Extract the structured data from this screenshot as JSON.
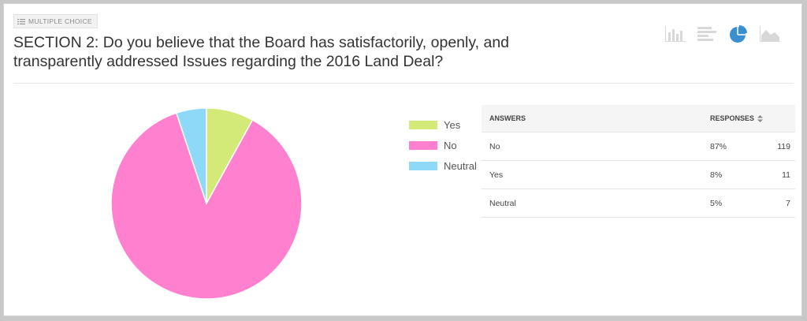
{
  "question": {
    "type_label": "MULTIPLE CHOICE",
    "title": "SECTION 2: Do you believe that the Board has satisfactorily, openly, and transparently addressed Issues regarding the 2016 Land Deal?"
  },
  "view_options": [
    {
      "icon": "vertical-bar-chart-icon",
      "active": false
    },
    {
      "icon": "horizontal-bar-chart-icon",
      "active": false
    },
    {
      "icon": "pie-chart-icon",
      "active": true
    },
    {
      "icon": "area-chart-icon",
      "active": false
    }
  ],
  "colors": {
    "yes": "#d4ea78",
    "no": "#ff80cf",
    "neutral": "#8ed8f8",
    "active_view": "#3a8fd0",
    "inactive_view": "#d8d8d8"
  },
  "legend": [
    {
      "label": "Yes",
      "color": "#d4ea78"
    },
    {
      "label": "No",
      "color": "#ff80cf"
    },
    {
      "label": "Neutral",
      "color": "#8ed8f8"
    }
  ],
  "table": {
    "headers": {
      "answers": "ANSWERS",
      "responses": "RESPONSES"
    },
    "rows": [
      {
        "answer": "No",
        "percent": "87%",
        "count": "119"
      },
      {
        "answer": "Yes",
        "percent": "8%",
        "count": "11"
      },
      {
        "answer": "Neutral",
        "percent": "5%",
        "count": "7"
      }
    ]
  },
  "chart_data": {
    "type": "pie",
    "categories": [
      "Yes",
      "No",
      "Neutral"
    ],
    "values": [
      11,
      119,
      7
    ],
    "colors": [
      "#d4ea78",
      "#ff80cf",
      "#8ed8f8"
    ],
    "legend_position": "right"
  }
}
